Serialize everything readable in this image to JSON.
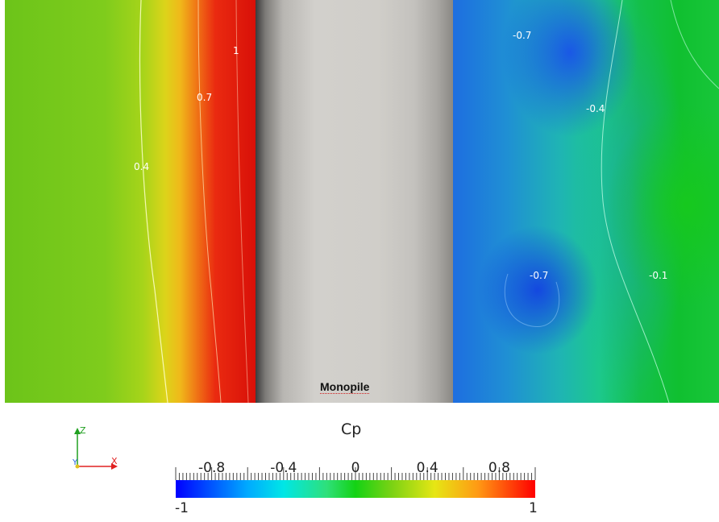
{
  "scene": {
    "body_label": "Monopile",
    "contour_labels": [
      {
        "text": "1"
      },
      {
        "text": "0.7"
      },
      {
        "text": "0.4"
      },
      {
        "text": "-0.7"
      },
      {
        "text": "-0.4"
      },
      {
        "text": "-0.7"
      },
      {
        "text": "-0.1"
      }
    ]
  },
  "legend": {
    "title": "Cp",
    "range": [
      -1,
      1
    ],
    "min_label": "-1",
    "max_label": "1",
    "tick_labels": [
      "-0.8",
      "-0.4",
      "0",
      "0.4",
      "0.8"
    ],
    "colors": {
      "min": "#0000ff",
      "mid": "#14d214",
      "max": "#ff0000"
    }
  },
  "axes": {
    "z": "Z",
    "y": "Y",
    "x": "X"
  }
}
